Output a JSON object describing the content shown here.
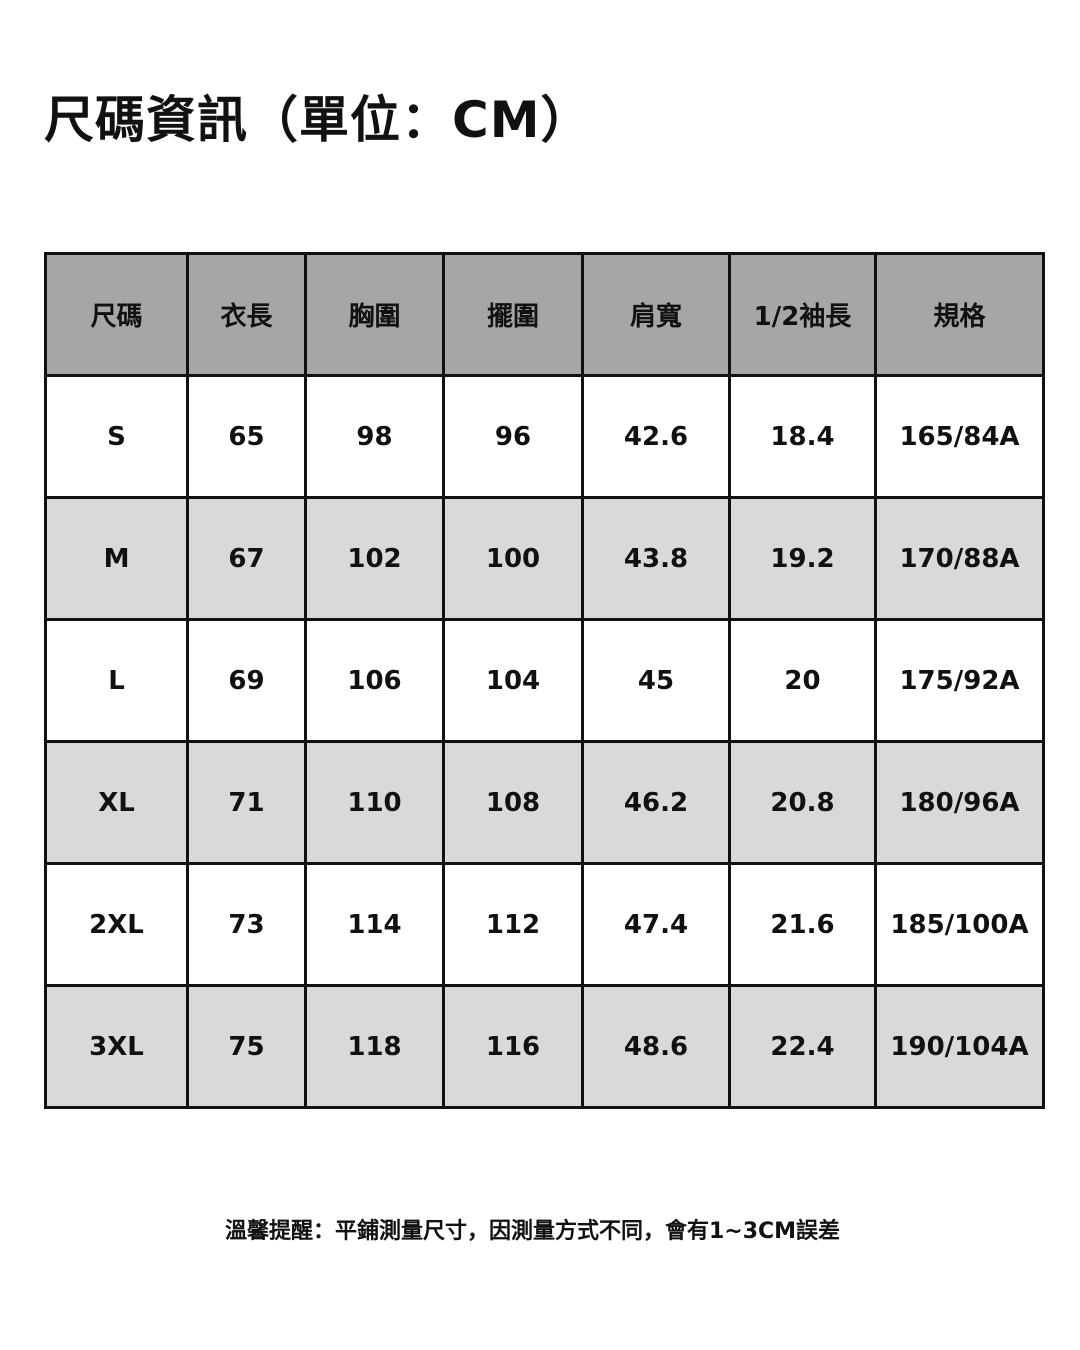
{
  "title": "尺碼資訊（單位：CM）",
  "table": {
    "headers": [
      "尺碼",
      "衣長",
      "胸圍",
      "擺圍",
      "肩寬",
      "1/2袖長",
      "規格"
    ],
    "rows": [
      [
        "S",
        "65",
        "98",
        "96",
        "42.6",
        "18.4",
        "165/84A"
      ],
      [
        "M",
        "67",
        "102",
        "100",
        "43.8",
        "19.2",
        "170/88A"
      ],
      [
        "L",
        "69",
        "106",
        "104",
        "45",
        "20",
        "175/92A"
      ],
      [
        "XL",
        "71",
        "110",
        "108",
        "46.2",
        "20.8",
        "180/96A"
      ],
      [
        "2XL",
        "73",
        "114",
        "112",
        "47.4",
        "21.6",
        "185/100A"
      ],
      [
        "3XL",
        "75",
        "118",
        "116",
        "48.6",
        "22.4",
        "190/104A"
      ]
    ]
  },
  "note": "溫馨提醒：平鋪測量尺寸，因測量方式不同，會有1~3CM誤差",
  "colors": {
    "header_bg": "#a6a6a6",
    "alt_row_bg": "#d9d9d9",
    "border": "#111111"
  }
}
